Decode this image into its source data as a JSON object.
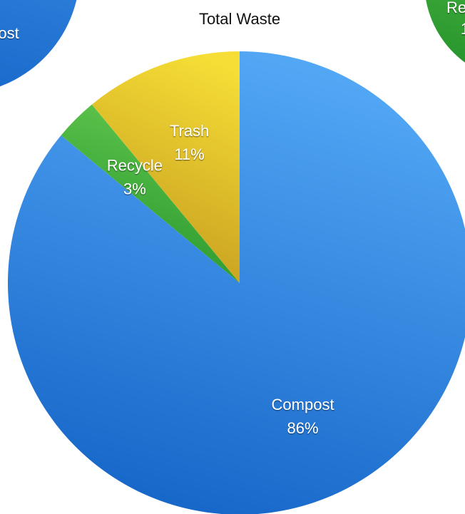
{
  "chart_data": {
    "type": "pie",
    "title": "Total Waste",
    "categories": [
      "Compost",
      "Recycle",
      "Trash"
    ],
    "values": [
      86,
      3,
      11
    ],
    "value_labels": [
      "86%",
      "3%",
      "11%"
    ],
    "colors": [
      [
        "#55aaf7",
        "#1767c9"
      ],
      [
        "#62c84e",
        "#27952d"
      ],
      [
        "#f6de36",
        "#c49a1e"
      ]
    ]
  },
  "left_fragment": {
    "label": "ost",
    "colors": [
      "#3c8fe6",
      "#1767c9"
    ]
  },
  "right_fragment": {
    "label": "Re",
    "sublabel": "1",
    "colors": [
      "#5cc24a",
      "#27952d"
    ]
  }
}
